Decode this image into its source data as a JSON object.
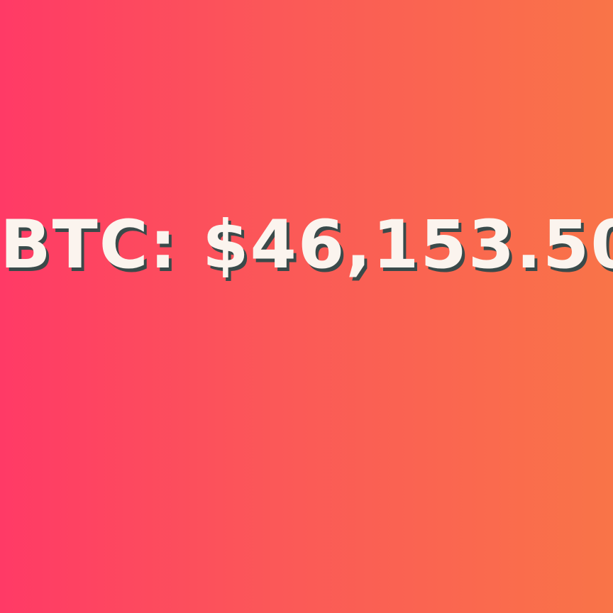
{
  "ticker": {
    "text": "BTC: $46,153.50"
  },
  "colors": {
    "gradient_start": "#ff3a66",
    "gradient_end": "#f97448",
    "text": "#fbf4ee",
    "text_shadow": "#3a4a4a"
  }
}
